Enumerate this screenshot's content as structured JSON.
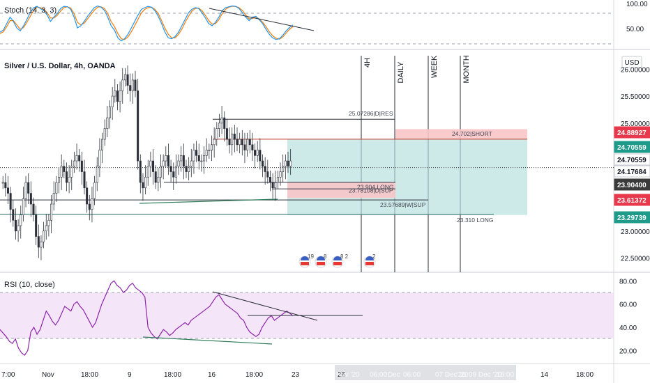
{
  "chart_data": [
    {
      "type": "candlestick",
      "title": "Silver / U.S. Dollar, 4h, OANDA",
      "currency": "USD",
      "ylim": [
        22.3,
        26.25
      ],
      "y_ticks": [
        "26.00000",
        "25.50000",
        "25.00000",
        "23.00000",
        "22.50000"
      ],
      "price_badges": [
        {
          "text": "24.88927",
          "color": "#e8384b"
        },
        {
          "text": "24.70559",
          "color": "#1e9b8a"
        },
        {
          "text": "24.70559",
          "color": "#ffffff"
        },
        {
          "text": "24.17684",
          "color": "#ffffff"
        },
        {
          "text": "23.90400",
          "color": "#3b3b3b"
        },
        {
          "text": "23.61372",
          "color": "#e8384b"
        },
        {
          "text": "23.29739",
          "color": "#1e9b8a"
        }
      ],
      "timeframe_labels": [
        "4H",
        "DAILY",
        "WEEK",
        "MONTH"
      ],
      "annotations": [
        {
          "text": "25.07286|D|RES",
          "value": 25.07286
        },
        {
          "text": "24.702|SHORT",
          "value": 24.702
        },
        {
          "text": "23.904 LONG",
          "value": 23.904
        },
        {
          "text": "23.78108|D|SUP",
          "value": 23.78108
        },
        {
          "text": "23.57689|W|SUP",
          "value": 23.57689
        },
        {
          "text": "23.310 LONG",
          "value": 23.31
        }
      ],
      "position_zones": {
        "short_top": 24.88927,
        "entry": 24.70559,
        "long_entry": 23.904,
        "short_stop": 23.61372,
        "long_target": 23.29739
      },
      "current_price": 24.17684,
      "event_badges": [
        {
          "label": "19"
        },
        {
          "label": "8"
        },
        {
          "label": "8 2"
        },
        {
          "label": "2"
        }
      ],
      "close_series": [
        23.9,
        23.8,
        23.7,
        23.4,
        23.2,
        23.0,
        23.1,
        23.3,
        23.6,
        23.9,
        23.7,
        23.5,
        23.3,
        22.9,
        22.7,
        22.8,
        23.0,
        23.1,
        23.2,
        23.5,
        23.7,
        23.9,
        24.0,
        24.2,
        24.1,
        23.9,
        24.0,
        24.2,
        24.3,
        24.4,
        24.3,
        24.1,
        23.8,
        23.5,
        23.4,
        23.6,
        23.9,
        24.2,
        24.5,
        24.7,
        24.9,
        25.1,
        25.3,
        25.5,
        25.6,
        25.4,
        25.6,
        25.8,
        25.9,
        25.7,
        25.6,
        25.8,
        25.6,
        24.3,
        23.9,
        23.8,
        24.0,
        24.2,
        24.3,
        24.1,
        23.9,
        24.0,
        24.2,
        24.3,
        24.4,
        24.2,
        24.1,
        24.0,
        24.2,
        24.3,
        24.4,
        24.2,
        24.1,
        24.2,
        24.3,
        24.5,
        24.4,
        24.3,
        24.3,
        24.4,
        24.5,
        24.5,
        24.6,
        24.7,
        24.9,
        25.0,
        25.1,
        24.9,
        24.7,
        24.6,
        24.8,
        24.7,
        24.6,
        24.7,
        24.6,
        24.5,
        24.7,
        24.6,
        24.5,
        24.4,
        24.5,
        24.3,
        24.2,
        24.1,
        24.0,
        23.9,
        23.8,
        23.9,
        24.0,
        24.1,
        24.2,
        24.3,
        24.2,
        24.3
      ]
    },
    {
      "type": "line",
      "title": "Stoch (14, 3, 3)",
      "ylim": [
        0,
        100
      ],
      "y_ticks": [
        "100.00",
        "50.00"
      ],
      "k": [
        35,
        40,
        55,
        70,
        60,
        45,
        38,
        50,
        65,
        80,
        92,
        95,
        90,
        85,
        75,
        60,
        70,
        78,
        90,
        95,
        94,
        88,
        70,
        45,
        50,
        60,
        72,
        82,
        92,
        96,
        93,
        86,
        70,
        50,
        40,
        22,
        15,
        20,
        30,
        45,
        60,
        75,
        88,
        92,
        95,
        93,
        85,
        72,
        55,
        35,
        22,
        20,
        25,
        35,
        50,
        65,
        80,
        88,
        92,
        90,
        80,
        68,
        55,
        50,
        58,
        70,
        85,
        92,
        94,
        96,
        95,
        90,
        80,
        70,
        62,
        70,
        72,
        64,
        55,
        42,
        30,
        22,
        18,
        20,
        28,
        38,
        46,
        52
      ],
      "d": [
        32,
        36,
        48,
        62,
        62,
        52,
        42,
        46,
        58,
        72,
        86,
        93,
        92,
        88,
        80,
        68,
        68,
        74,
        84,
        92,
        94,
        91,
        78,
        58,
        52,
        56,
        66,
        76,
        86,
        93,
        94,
        90,
        78,
        60,
        48,
        32,
        20,
        18,
        24,
        36,
        50,
        65,
        80,
        88,
        92,
        93,
        88,
        78,
        62,
        44,
        30,
        22,
        22,
        30,
        42,
        58,
        72,
        84,
        90,
        91,
        85,
        74,
        62,
        54,
        55,
        64,
        78,
        88,
        93,
        95,
        95,
        92,
        85,
        75,
        66,
        67,
        70,
        66,
        58,
        48,
        36,
        27,
        21,
        19,
        24,
        33,
        42,
        48
      ]
    },
    {
      "type": "line",
      "title": "RSI (10, close)",
      "ylim": [
        10,
        85
      ],
      "y_ticks": [
        "80.00",
        "60.00",
        "40.00",
        "20.00"
      ],
      "values": [
        38,
        35,
        32,
        28,
        26,
        30,
        22,
        18,
        16,
        20,
        36,
        40,
        34,
        38,
        46,
        54,
        50,
        45,
        42,
        46,
        52,
        58,
        56,
        54,
        60,
        62,
        58,
        55,
        50,
        45,
        40,
        44,
        52,
        60,
        66,
        72,
        78,
        80,
        76,
        74,
        70,
        72,
        76,
        78,
        74,
        72,
        70,
        66,
        40,
        35,
        32,
        30,
        34,
        38,
        36,
        33,
        35,
        38,
        40,
        42,
        44,
        42,
        46,
        48,
        50,
        52,
        54,
        56,
        58,
        62,
        66,
        68,
        64,
        60,
        58,
        56,
        54,
        52,
        48,
        46,
        40,
        36,
        34,
        32,
        34,
        40,
        44,
        48,
        50,
        46,
        48,
        50,
        52,
        54,
        52,
        50
      ]
    }
  ],
  "x_axis": {
    "ticks": [
      "7:00",
      "Nov",
      "18:00",
      "9",
      "18:00",
      "16",
      "18:00",
      "23",
      "26"
    ],
    "faded_ticks": [
      "Nov '20",
      "06:00",
      "Dec",
      "06:00",
      "'20",
      "07 Dec '20",
      "09 Dec '20",
      "18:00",
      "14",
      "18:00"
    ]
  }
}
